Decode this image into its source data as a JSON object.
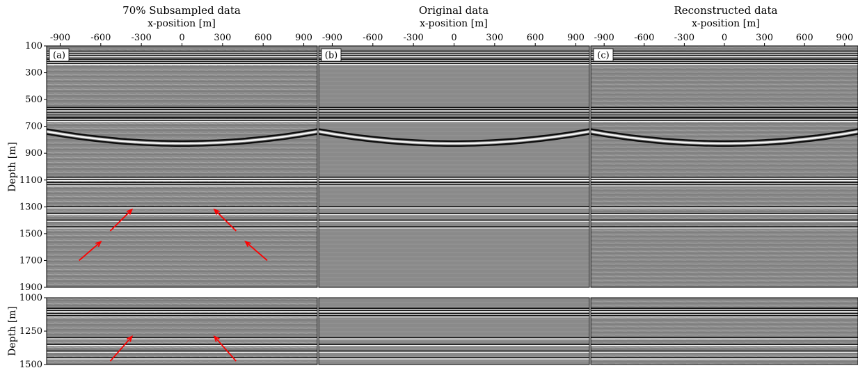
{
  "figure": {
    "ylabel": "Depth [m]",
    "xlabel": "x-position [m]",
    "arrow_color": "#ff0000",
    "colormap": "gray seismic (black/white reflections on mid-gray background)"
  },
  "chart_data": [
    {
      "type": "heatmap",
      "panel_label": "(a)",
      "title": "70% Subsampled data",
      "xlabel": "x-position [m]",
      "ylabel": "Depth [m]",
      "xlim": [
        -1000,
        1000
      ],
      "ylim": [
        1900,
        100
      ],
      "xticks": [
        -900,
        -600,
        -300,
        0,
        300,
        600,
        900
      ],
      "yticks": [
        100,
        300,
        500,
        700,
        900,
        1100,
        1300,
        1500,
        1700,
        1900
      ],
      "annotations": [
        {
          "type": "arrow",
          "from": [
            -760,
            1700
          ],
          "to": [
            -600,
            1560
          ]
        },
        {
          "type": "arrow",
          "from": [
            -530,
            1480
          ],
          "to": [
            -370,
            1320
          ]
        },
        {
          "type": "arrow",
          "from": [
            400,
            1480
          ],
          "to": [
            240,
            1320
          ]
        },
        {
          "type": "arrow",
          "from": [
            630,
            1700
          ],
          "to": [
            470,
            1560
          ]
        }
      ]
    },
    {
      "type": "heatmap",
      "panel_label": "(b)",
      "title": "Original data",
      "xlabel": "x-position [m]",
      "xlim": [
        -1000,
        1000
      ],
      "ylim": [
        1900,
        100
      ],
      "xticks": [
        -900,
        -600,
        -300,
        0,
        300,
        600,
        900
      ]
    },
    {
      "type": "heatmap",
      "panel_label": "(c)",
      "title": "Reconstructed data",
      "xlabel": "x-position [m]",
      "xlim": [
        -1000,
        1000
      ],
      "ylim": [
        1900,
        100
      ],
      "xticks": [
        -900,
        -600,
        -300,
        0,
        300,
        600,
        900
      ]
    },
    {
      "type": "heatmap",
      "title": "",
      "ylabel": "Depth [m]",
      "xlim": [
        -1000,
        1000
      ],
      "ylim": [
        1500,
        1000
      ],
      "yticks": [
        1000,
        1250,
        1500
      ],
      "annotations": [
        {
          "type": "arrow",
          "from": [
            -530,
            1475
          ],
          "to": [
            -370,
            1290
          ]
        },
        {
          "type": "arrow",
          "from": [
            400,
            1475
          ],
          "to": [
            240,
            1290
          ]
        }
      ]
    },
    {
      "type": "heatmap",
      "title": "",
      "xlim": [
        -1000,
        1000
      ],
      "ylim": [
        1500,
        1000
      ]
    },
    {
      "type": "heatmap",
      "title": "",
      "xlim": [
        -1000,
        1000
      ],
      "ylim": [
        1500,
        1000
      ]
    }
  ]
}
